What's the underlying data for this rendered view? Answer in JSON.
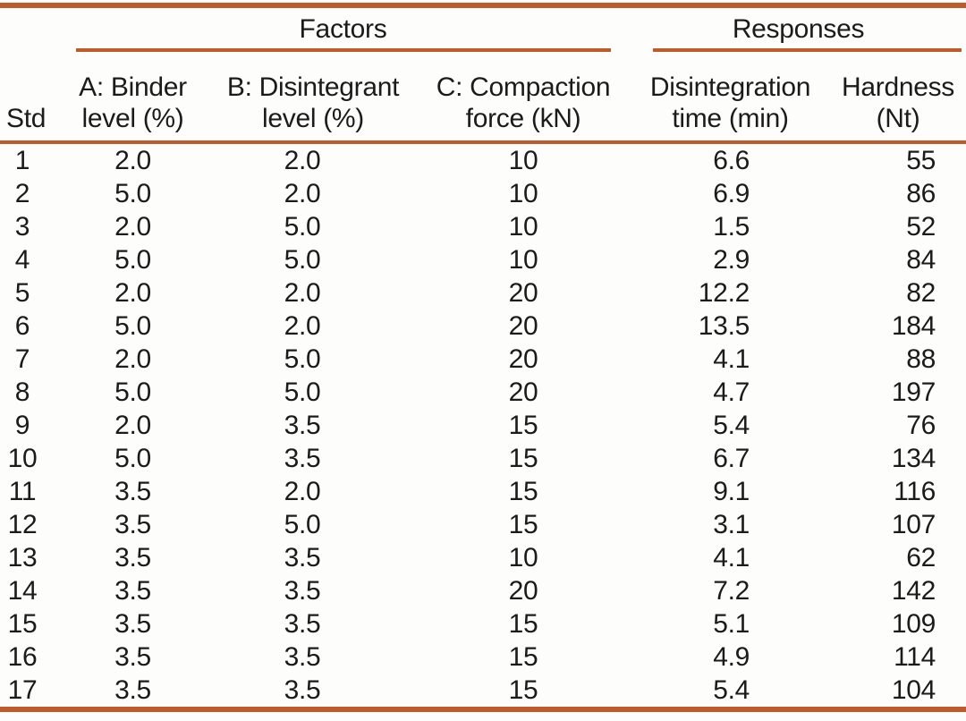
{
  "accent_color": "#bf5b2b",
  "table": {
    "group_factors": "Factors",
    "group_responses": "Responses",
    "headers": {
      "std": "Std",
      "a1": "A: Binder",
      "a2": "level (%)",
      "b1": "B: Disintegrant",
      "b2": "level (%)",
      "c1": "C: Compaction",
      "c2": "force (kN)",
      "dt1": "Disintegration",
      "dt2": "time (min)",
      "h1": "Hardness",
      "h2": "(Nt)"
    },
    "rows": [
      {
        "std": "1",
        "a": "2.0",
        "b": "2.0",
        "c": "10",
        "dt": "6.6",
        "h": "55"
      },
      {
        "std": "2",
        "a": "5.0",
        "b": "2.0",
        "c": "10",
        "dt": "6.9",
        "h": "86"
      },
      {
        "std": "3",
        "a": "2.0",
        "b": "5.0",
        "c": "10",
        "dt": "1.5",
        "h": "52"
      },
      {
        "std": "4",
        "a": "5.0",
        "b": "5.0",
        "c": "10",
        "dt": "2.9",
        "h": "84"
      },
      {
        "std": "5",
        "a": "2.0",
        "b": "2.0",
        "c": "20",
        "dt": "12.2",
        "h": "82"
      },
      {
        "std": "6",
        "a": "5.0",
        "b": "2.0",
        "c": "20",
        "dt": "13.5",
        "h": "184"
      },
      {
        "std": "7",
        "a": "2.0",
        "b": "5.0",
        "c": "20",
        "dt": "4.1",
        "h": "88"
      },
      {
        "std": "8",
        "a": "5.0",
        "b": "5.0",
        "c": "20",
        "dt": "4.7",
        "h": "197"
      },
      {
        "std": "9",
        "a": "2.0",
        "b": "3.5",
        "c": "15",
        "dt": "5.4",
        "h": "76"
      },
      {
        "std": "10",
        "a": "5.0",
        "b": "3.5",
        "c": "15",
        "dt": "6.7",
        "h": "134"
      },
      {
        "std": "11",
        "a": "3.5",
        "b": "2.0",
        "c": "15",
        "dt": "9.1",
        "h": "116"
      },
      {
        "std": "12",
        "a": "3.5",
        "b": "5.0",
        "c": "15",
        "dt": "3.1",
        "h": "107"
      },
      {
        "std": "13",
        "a": "3.5",
        "b": "3.5",
        "c": "10",
        "dt": "4.1",
        "h": "62"
      },
      {
        "std": "14",
        "a": "3.5",
        "b": "3.5",
        "c": "20",
        "dt": "7.2",
        "h": "142"
      },
      {
        "std": "15",
        "a": "3.5",
        "b": "3.5",
        "c": "15",
        "dt": "5.1",
        "h": "109"
      },
      {
        "std": "16",
        "a": "3.5",
        "b": "3.5",
        "c": "15",
        "dt": "4.9",
        "h": "114"
      },
      {
        "std": "17",
        "a": "3.5",
        "b": "3.5",
        "c": "15",
        "dt": "5.4",
        "h": "104"
      }
    ]
  }
}
